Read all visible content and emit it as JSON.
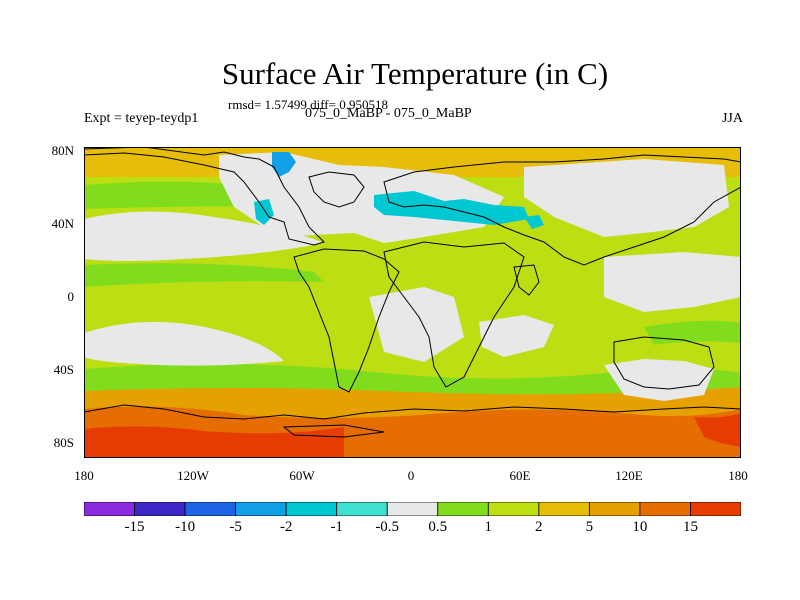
{
  "figure": {
    "title": "Surface Air Temperature (in C)",
    "stats": "rmsd= 1.57499 diff= 0.950518",
    "experiment": "Expt = teyep-teydp1",
    "subtitle": "075_0_MaBP - 075_0_MaBP",
    "season": "JJA"
  },
  "axes": {
    "y_labels": [
      "80N",
      "40N",
      "0",
      "40S",
      "80S"
    ],
    "x_labels": [
      "180",
      "120W",
      "60W",
      "0",
      "60E",
      "120E",
      "180"
    ]
  },
  "colorbar": {
    "colors": [
      "#8a2be2",
      "#3c28c8",
      "#1e64e6",
      "#12a0e6",
      "#00c8d2",
      "#40e0d0",
      "#e8e8e8",
      "#82dc1e",
      "#bede14",
      "#e6be0a",
      "#e6a000",
      "#e66e00",
      "#e63c00"
    ],
    "labels": [
      "-15",
      "-10",
      "-5",
      "-2",
      "-1",
      "-0.5",
      "0.5",
      "1",
      "2",
      "5",
      "10",
      "15"
    ]
  },
  "map_colors": {
    "neutral": "#e8e8e8",
    "green": "#82dc1e",
    "yellow_green": "#bede14",
    "yellow": "#e6be0a",
    "orange": "#e6a000",
    "dark_orange": "#e66e00",
    "red_orange": "#e63c00",
    "cyan": "#00c8d2",
    "blue_cyan": "#12a0e6",
    "outline": "#000000"
  }
}
